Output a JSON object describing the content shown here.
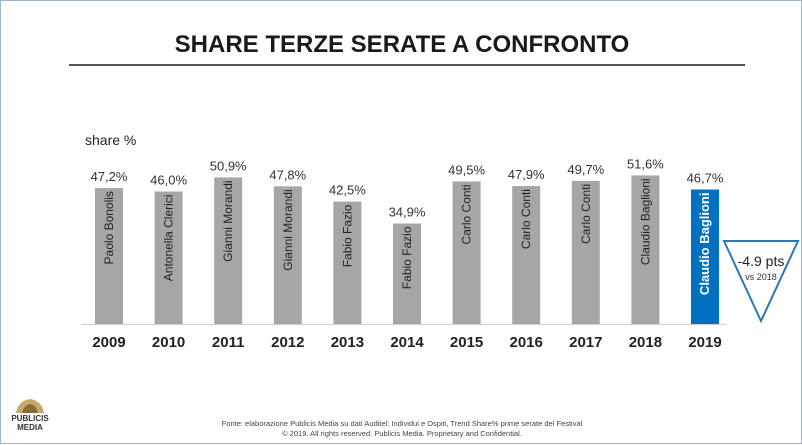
{
  "title": "SHARE TERZE SERATE A CONFRONTO",
  "footer": {
    "line1": "Fonte: elaborazione Publicis Media su dati Auditel; Individui e Ospiti, Trend Share% prime serate del Festival",
    "line2": "© 2019. All rights reserved. Publicis Media. Proprietary and Confidential."
  },
  "logo": {
    "line1": "PUBLICIS",
    "line2": "MEDIA"
  },
  "colors": {
    "bar": "#a6a6a6",
    "highlight": "#0070c0",
    "callout_border": "#2e75b6"
  },
  "callout": {
    "value": "-4.9 pts",
    "sub": "vs 2018"
  },
  "chart_data": {
    "type": "bar",
    "ylabel": "share %",
    "categories": [
      "2009",
      "2010",
      "2011",
      "2012",
      "2013",
      "2014",
      "2015",
      "2016",
      "2017",
      "2018",
      "2019"
    ],
    "values": [
      47.2,
      46.0,
      50.9,
      47.8,
      42.5,
      34.9,
      49.5,
      47.9,
      49.7,
      51.6,
      46.7
    ],
    "value_labels": [
      "47,2%",
      "46,0%",
      "50,9%",
      "47,8%",
      "42,5%",
      "34,9%",
      "49,5%",
      "47,9%",
      "49,7%",
      "51,6%",
      "46,7%"
    ],
    "bar_labels": [
      "Paolo Bonolis",
      "Antonella Clerici",
      "Gianni Morandi",
      "Gianni Morandi",
      "Fabio Fazio",
      "Fabio Fazio",
      "Carlo Conti",
      "Carlo Conti",
      "Carlo Conti",
      "Claudio Baglioni",
      "Claudio Baglioni"
    ],
    "highlight_index": 10,
    "grid": false,
    "legend": "none"
  }
}
